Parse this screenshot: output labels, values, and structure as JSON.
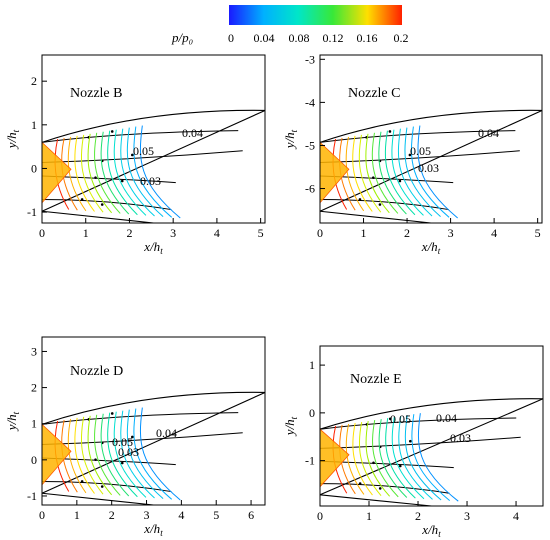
{
  "colorbar": {
    "title": "p/p₀",
    "tick_labels": [
      "0",
      "0.04",
      "0.08",
      "0.12",
      "0.16",
      "0.2"
    ],
    "min": 0,
    "max": 0.2,
    "colors": [
      "#1a1aff",
      "#00b0ff",
      "#00e6c8",
      "#38e838",
      "#ffe000",
      "#ff2000"
    ]
  },
  "chart_data": [
    {
      "type": "contour",
      "title": "Nozzle B",
      "xlabel": "x/h_t",
      "ylabel": "y/h_t",
      "xlim": [
        0,
        5.1
      ],
      "ylim": [
        -1.25,
        2.6
      ],
      "xticks": [
        "0",
        "1",
        "2",
        "3",
        "4",
        "5"
      ],
      "yticks": [
        "-1",
        "0",
        "1",
        "2"
      ],
      "contour_labels": [
        "0.05",
        "0.04",
        "0.03"
      ]
    },
    {
      "type": "contour",
      "title": "Nozzle C",
      "xlabel": "x/h_t",
      "ylabel": "y/h_t",
      "xlim": [
        0,
        5.1
      ],
      "ylim": [
        -6.8,
        -2.9
      ],
      "xticks": [
        "0",
        "1",
        "2",
        "3",
        "4",
        "5"
      ],
      "yticks": [
        "-6",
        "-5",
        "-4",
        "-3"
      ],
      "contour_labels": [
        "0.05",
        "0.04",
        "0.03"
      ]
    },
    {
      "type": "contour",
      "title": "Nozzle D",
      "xlabel": "x/h_t",
      "ylabel": "y/h_t",
      "xlim": [
        0,
        6.4
      ],
      "ylim": [
        -1.25,
        3.4
      ],
      "xticks": [
        "0",
        "1",
        "2",
        "3",
        "4",
        "5",
        "6"
      ],
      "yticks": [
        "-1",
        "0",
        "1",
        "2",
        "3"
      ],
      "contour_labels": [
        "0.05",
        "0.04",
        "0.03"
      ]
    },
    {
      "type": "contour",
      "title": "Nozzle E",
      "xlabel": "x/h_t",
      "ylabel": "y/h_t",
      "xlim": [
        0,
        4.55
      ],
      "ylim": [
        -1.95,
        1.4
      ],
      "xticks": [
        "0",
        "1",
        "2",
        "3",
        "4"
      ],
      "yticks": [
        "-1",
        "0",
        "1"
      ],
      "contour_labels": [
        "0.05",
        "0.04",
        "0.03"
      ]
    }
  ]
}
